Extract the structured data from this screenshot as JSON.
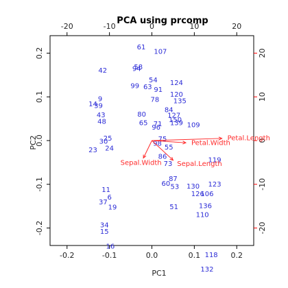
{
  "chart_data": {
    "type": "scatter",
    "subtype": "biplot",
    "title": "PCA using prcomp",
    "xlabel": "PC1",
    "ylabel": "PC2",
    "xlim": [
      -0.24,
      0.24
    ],
    "ylim": [
      -0.24,
      0.24
    ],
    "x_ticks": [
      "-0.2",
      "-0.1",
      "0.0",
      "0.1",
      "0.2"
    ],
    "y_ticks": [
      "-0.2",
      "-0.1",
      "0.0",
      "0.1",
      "0.2"
    ],
    "top_ticks": [
      "-20",
      "-10",
      "0",
      "10",
      "20"
    ],
    "right_ticks": [
      "-20",
      "-10",
      "0",
      "10",
      "20"
    ],
    "loading_scale": 0.01,
    "points": [
      {
        "label": "61",
        "x": -0.025,
        "y": 0.213
      },
      {
        "label": "107",
        "x": 0.02,
        "y": 0.203
      },
      {
        "label": "58",
        "x": -0.032,
        "y": 0.168
      },
      {
        "label": "94",
        "x": -0.036,
        "y": 0.164
      },
      {
        "label": "42",
        "x": -0.116,
        "y": 0.16
      },
      {
        "label": "54",
        "x": 0.003,
        "y": 0.138
      },
      {
        "label": "99",
        "x": -0.04,
        "y": 0.125
      },
      {
        "label": "63",
        "x": -0.01,
        "y": 0.122
      },
      {
        "label": "91",
        "x": 0.015,
        "y": 0.116
      },
      {
        "label": "124",
        "x": 0.058,
        "y": 0.132
      },
      {
        "label": "120",
        "x": 0.058,
        "y": 0.105
      },
      {
        "label": "135",
        "x": 0.066,
        "y": 0.09
      },
      {
        "label": "78",
        "x": 0.007,
        "y": 0.093
      },
      {
        "label": "84",
        "x": 0.04,
        "y": 0.07
      },
      {
        "label": "127",
        "x": 0.052,
        "y": 0.057
      },
      {
        "label": "80",
        "x": -0.024,
        "y": 0.06
      },
      {
        "label": "65",
        "x": -0.02,
        "y": 0.04
      },
      {
        "label": "150",
        "x": 0.055,
        "y": 0.047
      },
      {
        "label": "96",
        "x": 0.01,
        "y": 0.03
      },
      {
        "label": "139",
        "x": 0.058,
        "y": 0.04
      },
      {
        "label": "109",
        "x": 0.098,
        "y": 0.035
      },
      {
        "label": "119",
        "x": 0.148,
        "y": -0.045
      },
      {
        "label": "9",
        "x": -0.122,
        "y": 0.095
      },
      {
        "label": "14",
        "x": -0.139,
        "y": 0.083
      },
      {
        "label": "39",
        "x": -0.126,
        "y": 0.079
      },
      {
        "label": "43",
        "x": -0.12,
        "y": 0.058
      },
      {
        "label": "48",
        "x": -0.118,
        "y": 0.043
      },
      {
        "label": "25",
        "x": -0.104,
        "y": 0.005
      },
      {
        "label": "23",
        "x": -0.139,
        "y": -0.022
      },
      {
        "label": "24",
        "x": -0.1,
        "y": -0.018
      },
      {
        "label": "30",
        "x": -0.114,
        "y": -0.002
      },
      {
        "label": "6",
        "x": -0.1,
        "y": -0.13
      },
      {
        "label": "37",
        "x": -0.115,
        "y": -0.141
      },
      {
        "label": "19",
        "x": -0.093,
        "y": -0.153
      },
      {
        "label": "34",
        "x": -0.112,
        "y": -0.194
      },
      {
        "label": "15",
        "x": -0.112,
        "y": -0.209
      },
      {
        "label": "16",
        "x": -0.098,
        "y": -0.242
      },
      {
        "label": "11",
        "x": -0.108,
        "y": -0.113
      },
      {
        "label": "71",
        "x": 0.014,
        "y": 0.038
      },
      {
        "label": "75",
        "x": 0.025,
        "y": 0.003
      },
      {
        "label": "98",
        "x": 0.013,
        "y": -0.007
      },
      {
        "label": "55",
        "x": 0.04,
        "y": -0.016
      },
      {
        "label": "86",
        "x": 0.025,
        "y": -0.037
      },
      {
        "label": "73",
        "x": 0.038,
        "y": -0.053
      },
      {
        "label": "87",
        "x": 0.05,
        "y": -0.088
      },
      {
        "label": "60",
        "x": 0.033,
        "y": -0.099
      },
      {
        "label": "53",
        "x": 0.054,
        "y": -0.106
      },
      {
        "label": "130",
        "x": 0.097,
        "y": -0.105
      },
      {
        "label": "126",
        "x": 0.108,
        "y": -0.122
      },
      {
        "label": "123",
        "x": 0.148,
        "y": -0.1
      },
      {
        "label": "106",
        "x": 0.13,
        "y": -0.122
      },
      {
        "label": "51",
        "x": 0.052,
        "y": -0.152
      },
      {
        "label": "136",
        "x": 0.126,
        "y": -0.15
      },
      {
        "label": "110",
        "x": 0.119,
        "y": -0.17
      },
      {
        "label": "118",
        "x": 0.14,
        "y": -0.262
      },
      {
        "label": "132",
        "x": 0.13,
        "y": -0.295
      }
    ],
    "arrows": [
      {
        "label": "Petal.Length",
        "x": 16.5,
        "y": 0.5
      },
      {
        "label": "Petal.Width",
        "x": 8.0,
        "y": -0.5
      },
      {
        "label": "Sepal.Width",
        "x": -2.0,
        "y": -4.0
      },
      {
        "label": "Sepal.Length",
        "x": 5.0,
        "y": -4.5
      }
    ]
  }
}
